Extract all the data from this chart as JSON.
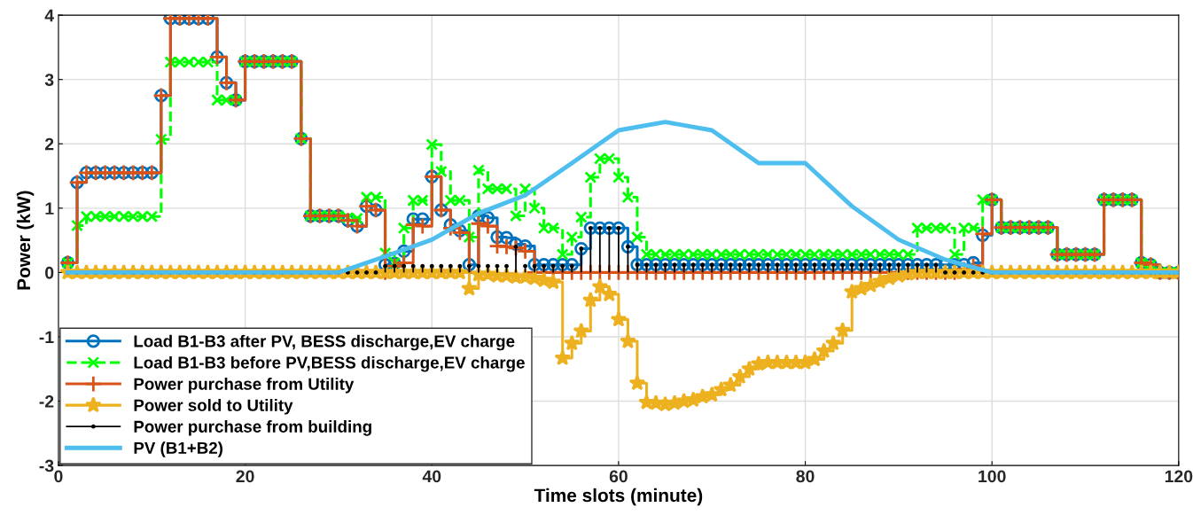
{
  "chart_data": {
    "type": "step",
    "xlabel": "Time slots (minute)",
    "ylabel": "Power (kW)",
    "x": [
      1,
      2,
      3,
      4,
      5,
      6,
      7,
      8,
      9,
      10,
      11,
      12,
      13,
      14,
      15,
      16,
      17,
      18,
      19,
      20,
      21,
      22,
      23,
      24,
      25,
      26,
      27,
      28,
      29,
      30,
      31,
      32,
      33,
      34,
      35,
      36,
      37,
      38,
      39,
      40,
      41,
      42,
      43,
      44,
      45,
      46,
      47,
      48,
      49,
      50,
      51,
      52,
      53,
      54,
      55,
      56,
      57,
      58,
      59,
      60,
      61,
      62,
      63,
      64,
      65,
      66,
      67,
      68,
      69,
      70,
      71,
      72,
      73,
      74,
      75,
      76,
      77,
      78,
      79,
      80,
      81,
      82,
      83,
      84,
      85,
      86,
      87,
      88,
      89,
      90,
      91,
      92,
      93,
      94,
      95,
      96,
      97,
      98,
      99,
      100,
      101,
      102,
      103,
      104,
      105,
      106,
      107,
      108,
      109,
      110,
      111,
      112,
      113,
      114,
      115,
      116,
      117,
      118,
      119,
      120
    ],
    "xlim": [
      0,
      120
    ],
    "xticks": [
      0,
      20,
      40,
      60,
      80,
      100,
      120
    ],
    "ylim": [
      -3,
      4
    ],
    "yticks": [
      -3,
      -2,
      -1,
      0,
      1,
      2,
      3,
      4
    ],
    "grid": true,
    "legend": "bottom left",
    "series": [
      {
        "name": "Load B1-B3 after PV, BESS discharge,EV charge",
        "color": "#0072bd",
        "marker": "circle",
        "line_style": "solid",
        "values": [
          0.15,
          1.4,
          1.55,
          1.55,
          1.55,
          1.55,
          1.55,
          1.55,
          1.55,
          1.55,
          2.75,
          3.95,
          3.95,
          3.95,
          3.95,
          3.95,
          3.35,
          2.95,
          2.68,
          3.28,
          3.28,
          3.28,
          3.28,
          3.28,
          3.28,
          2.08,
          0.88,
          0.88,
          0.88,
          0.88,
          0.81,
          0.72,
          1.03,
          0.97,
          0.12,
          0.14,
          0.33,
          0.83,
          0.83,
          1.49,
          0.97,
          0.74,
          0.65,
          0.12,
          0.88,
          0.85,
          0.55,
          0.54,
          0.44,
          0.41,
          0.12,
          0.12,
          0.12,
          0.12,
          0.12,
          0.37,
          0.69,
          0.69,
          0.69,
          0.69,
          0.4,
          0.12,
          0.12,
          0.12,
          0.12,
          0.12,
          0.12,
          0.12,
          0.12,
          0.12,
          0.12,
          0.12,
          0.12,
          0.12,
          0.12,
          0.12,
          0.12,
          0.12,
          0.12,
          0.12,
          0.12,
          0.12,
          0.12,
          0.12,
          0.12,
          0.12,
          0.12,
          0.12,
          0.12,
          0.12,
          0.12,
          0.12,
          0.12,
          0.12,
          0.12,
          0.12,
          0.12,
          0.15,
          0.58,
          1.13,
          0.7,
          0.7,
          0.7,
          0.7,
          0.7,
          0.7,
          0.28,
          0.28,
          0.28,
          0.28,
          0.28,
          1.13,
          1.13,
          1.13,
          1.13,
          0.15,
          0.12,
          0,
          0,
          0
        ]
      },
      {
        "name": "Load B1-B3 before PV,BESS discharge,EV charge",
        "color": "#00ff00",
        "marker": "cross",
        "line_style": "dashed",
        "values": [
          0.15,
          0.73,
          0.87,
          0.87,
          0.87,
          0.87,
          0.87,
          0.87,
          0.87,
          0.87,
          2.07,
          3.27,
          3.27,
          3.27,
          3.27,
          3.27,
          2.68,
          2.68,
          2.68,
          3.28,
          3.28,
          3.28,
          3.28,
          3.28,
          3.28,
          2.08,
          0.88,
          0.88,
          0.88,
          0.88,
          0.85,
          0.84,
          1.17,
          1.17,
          0.3,
          0.15,
          0.69,
          1.12,
          1.12,
          1.99,
          1.57,
          1.12,
          1.12,
          0.55,
          1.59,
          1.3,
          1.3,
          1.3,
          0.88,
          1.3,
          1.0,
          0.69,
          0.69,
          0.28,
          0.55,
          0.86,
          1.48,
          1.77,
          1.77,
          1.48,
          1.17,
          0.55,
          0.28,
          0.28,
          0.28,
          0.28,
          0.28,
          0.28,
          0.28,
          0.28,
          0.28,
          0.28,
          0.28,
          0.28,
          0.28,
          0.28,
          0.28,
          0.28,
          0.28,
          0.28,
          0.28,
          0.28,
          0.28,
          0.28,
          0.28,
          0.28,
          0.28,
          0.28,
          0.28,
          0.28,
          0.28,
          0.69,
          0.69,
          0.69,
          0.69,
          0.28,
          0.69,
          0.69,
          1.13,
          1.13,
          0.7,
          0.7,
          0.7,
          0.7,
          0.7,
          0.7,
          0.28,
          0.28,
          0.28,
          0.28,
          0.28,
          1.13,
          1.13,
          1.13,
          1.13,
          0.15,
          0.12,
          0,
          0,
          0
        ]
      },
      {
        "name": "Power purchase from Utility",
        "color": "#d95319",
        "marker": "plus",
        "line_style": "solid",
        "values": [
          0.15,
          1.4,
          1.55,
          1.55,
          1.55,
          1.55,
          1.55,
          1.55,
          1.55,
          1.55,
          2.75,
          3.95,
          3.95,
          3.95,
          3.95,
          3.95,
          3.35,
          2.95,
          2.68,
          3.28,
          3.28,
          3.28,
          3.28,
          3.28,
          3.28,
          2.08,
          0.88,
          0.88,
          0.88,
          0.88,
          0.81,
          0.72,
          1.03,
          0.97,
          0,
          0.1,
          0.15,
          0.74,
          0.72,
          1.49,
          0.97,
          0.69,
          0.62,
          0,
          0.76,
          0.72,
          0.41,
          0.4,
          0.38,
          0.33,
          0,
          0,
          0,
          0,
          0,
          0,
          0,
          0,
          0,
          0,
          0,
          0,
          0,
          0,
          0,
          0,
          0,
          0,
          0,
          0,
          0,
          0,
          0,
          0,
          0,
          0,
          0,
          0,
          0,
          0,
          0,
          0,
          0,
          0,
          0,
          0,
          0,
          0,
          0,
          0,
          0,
          0,
          0,
          0,
          0,
          0,
          0.05,
          0.1,
          0.6,
          1.13,
          0.7,
          0.7,
          0.7,
          0.7,
          0.7,
          0.7,
          0.28,
          0.28,
          0.28,
          0.28,
          0.28,
          1.13,
          1.13,
          1.13,
          1.13,
          0.15,
          0.12,
          0,
          0,
          0
        ]
      },
      {
        "name": "Power sold to Utility",
        "color": "#edb120",
        "marker": "star",
        "line_style": "solid",
        "values": [
          0,
          0,
          0,
          0,
          0,
          0,
          0,
          0,
          0,
          0,
          0,
          0,
          0,
          0,
          0,
          0,
          0,
          0,
          0,
          0,
          0,
          0,
          0,
          0,
          0,
          0,
          0,
          0,
          0,
          0,
          0,
          0,
          0,
          0,
          0,
          0,
          0,
          0,
          0,
          0,
          0,
          0,
          0,
          -0.25,
          -0.03,
          -0.03,
          -0.05,
          -0.05,
          -0.07,
          -0.07,
          -0.09,
          -0.12,
          -0.15,
          -1.33,
          -1.1,
          -0.91,
          -0.43,
          -0.22,
          -0.34,
          -0.73,
          -1.07,
          -1.72,
          -2.02,
          -2.03,
          -2.05,
          -2.03,
          -2.0,
          -1.98,
          -1.93,
          -1.9,
          -1.82,
          -1.75,
          -1.62,
          -1.5,
          -1.42,
          -1.4,
          -1.4,
          -1.4,
          -1.4,
          -1.4,
          -1.35,
          -1.22,
          -1.1,
          -0.9,
          -0.3,
          -0.25,
          -0.2,
          -0.14,
          -0.09,
          -0.05,
          -0.02,
          0,
          0,
          0,
          0,
          0,
          0,
          0,
          0,
          0,
          0,
          0,
          0,
          0,
          0,
          0,
          0,
          0,
          0,
          0,
          0,
          0,
          0,
          0,
          0,
          0,
          0,
          0,
          0,
          0
        ]
      },
      {
        "name": "Power purchase from building",
        "type": "lollipop",
        "color": "#000000",
        "marker": "point",
        "values": [
          0,
          0,
          0,
          0,
          0,
          0,
          0,
          0,
          0,
          0,
          0,
          0,
          0,
          0,
          0,
          0,
          0,
          0,
          0,
          0,
          0,
          0,
          0,
          0,
          0,
          0,
          0,
          0,
          0,
          0,
          0,
          0,
          0,
          0,
          0.1,
          0.1,
          0.1,
          0.1,
          0.1,
          0.1,
          0.1,
          0.1,
          0.1,
          0.1,
          0.1,
          0.1,
          0.1,
          0.1,
          0.4,
          0.1,
          0.1,
          0.1,
          0.1,
          0.1,
          0.1,
          0.37,
          0.69,
          0.69,
          0.69,
          0.69,
          0.4,
          0.12,
          0.12,
          0.12,
          0.12,
          0.12,
          0.12,
          0.12,
          0.12,
          0.12,
          0.12,
          0.12,
          0.12,
          0.12,
          0.12,
          0.12,
          0.12,
          0.12,
          0.12,
          0.12,
          0.12,
          0.12,
          0.12,
          0.12,
          0.12,
          0.12,
          0.12,
          0.12,
          0.12,
          0.12,
          0.12,
          0.12,
          0.12,
          0.12,
          0,
          0,
          0,
          0,
          0,
          0,
          0,
          0,
          0,
          0,
          0,
          0,
          0,
          0,
          0,
          0,
          0,
          0,
          0,
          0,
          0,
          0,
          0,
          0,
          0,
          0
        ]
      },
      {
        "name": "PV (B1+B2)",
        "type": "line",
        "color": "#4dbeee",
        "marker": "none",
        "line_style": "solid",
        "x": [
          1,
          30,
          35,
          40,
          45,
          50,
          55,
          60,
          65,
          70,
          75,
          80,
          85,
          90,
          95,
          100,
          120
        ],
        "values": [
          0,
          0,
          0.25,
          0.51,
          0.92,
          1.2,
          1.7,
          2.21,
          2.34,
          2.21,
          1.7,
          1.7,
          1.03,
          0.51,
          0.2,
          0,
          0
        ]
      }
    ]
  }
}
